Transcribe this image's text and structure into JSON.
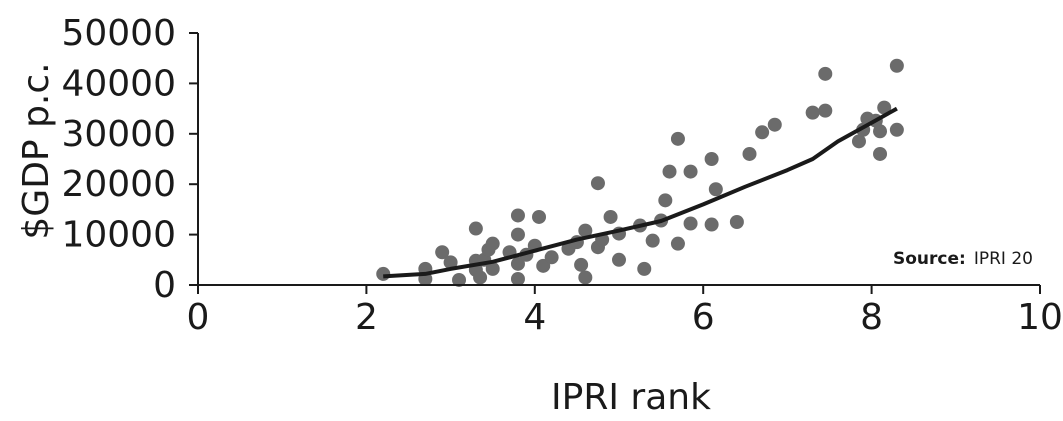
{
  "chart_data": {
    "type": "scatter",
    "xlabel": "IPRI rank",
    "ylabel": "$GDP p.c.",
    "xlim": [
      0,
      10
    ],
    "ylim": [
      0,
      50000
    ],
    "x_ticks": [
      "0",
      "2",
      "4",
      "6",
      "8",
      "10"
    ],
    "y_ticks": [
      "0",
      "10000",
      "20000",
      "30000",
      "40000",
      "50000"
    ],
    "grid": false,
    "source_label": "Source:",
    "source_text": "IPRI 20",
    "point_color": "#6b6b6b",
    "line_color": "#1a1a1a",
    "series": [
      {
        "kind": "points",
        "points": [
          [
            2.2,
            2200
          ],
          [
            2.7,
            3200
          ],
          [
            2.7,
            1200
          ],
          [
            2.9,
            6500
          ],
          [
            3.0,
            4500
          ],
          [
            3.1,
            1000
          ],
          [
            3.3,
            11200
          ],
          [
            3.3,
            4800
          ],
          [
            3.3,
            3000
          ],
          [
            3.35,
            1500
          ],
          [
            3.4,
            5000
          ],
          [
            3.45,
            7000
          ],
          [
            3.5,
            8200
          ],
          [
            3.5,
            3200
          ],
          [
            3.7,
            6500
          ],
          [
            3.8,
            13800
          ],
          [
            3.8,
            10000
          ],
          [
            3.8,
            1200
          ],
          [
            3.8,
            4200
          ],
          [
            3.9,
            6000
          ],
          [
            4.0,
            7800
          ],
          [
            4.05,
            13500
          ],
          [
            4.1,
            3800
          ],
          [
            4.2,
            5500
          ],
          [
            4.4,
            7200
          ],
          [
            4.5,
            8500
          ],
          [
            4.55,
            4000
          ],
          [
            4.6,
            10800
          ],
          [
            4.6,
            1500
          ],
          [
            4.75,
            20200
          ],
          [
            4.75,
            7500
          ],
          [
            4.8,
            9000
          ],
          [
            4.9,
            13500
          ],
          [
            5.0,
            10200
          ],
          [
            5.0,
            5000
          ],
          [
            5.25,
            11800
          ],
          [
            5.3,
            3200
          ],
          [
            5.4,
            8800
          ],
          [
            5.5,
            12800
          ],
          [
            5.55,
            16800
          ],
          [
            5.6,
            22500
          ],
          [
            5.7,
            29000
          ],
          [
            5.7,
            8200
          ],
          [
            5.85,
            12200
          ],
          [
            5.85,
            22500
          ],
          [
            6.1,
            25000
          ],
          [
            6.1,
            12000
          ],
          [
            6.15,
            19000
          ],
          [
            6.4,
            12500
          ],
          [
            6.55,
            26000
          ],
          [
            6.7,
            30300
          ],
          [
            6.85,
            31800
          ],
          [
            7.3,
            34200
          ],
          [
            7.45,
            34600
          ],
          [
            7.45,
            41900
          ],
          [
            7.85,
            28500
          ],
          [
            7.9,
            30800
          ],
          [
            7.95,
            33000
          ],
          [
            8.05,
            32600
          ],
          [
            8.1,
            26000
          ],
          [
            8.1,
            30500
          ],
          [
            8.15,
            35200
          ],
          [
            8.3,
            30800
          ],
          [
            8.3,
            43500
          ]
        ]
      },
      {
        "kind": "trendline",
        "points": [
          [
            2.2,
            1700
          ],
          [
            2.7,
            2200
          ],
          [
            3.0,
            3200
          ],
          [
            3.5,
            4600
          ],
          [
            4.0,
            6800
          ],
          [
            4.5,
            9000
          ],
          [
            5.0,
            10800
          ],
          [
            5.5,
            12700
          ],
          [
            6.0,
            16000
          ],
          [
            6.5,
            19500
          ],
          [
            7.0,
            22800
          ],
          [
            7.3,
            25000
          ],
          [
            7.6,
            28500
          ],
          [
            8.0,
            32200
          ],
          [
            8.3,
            35000
          ]
        ]
      }
    ]
  }
}
